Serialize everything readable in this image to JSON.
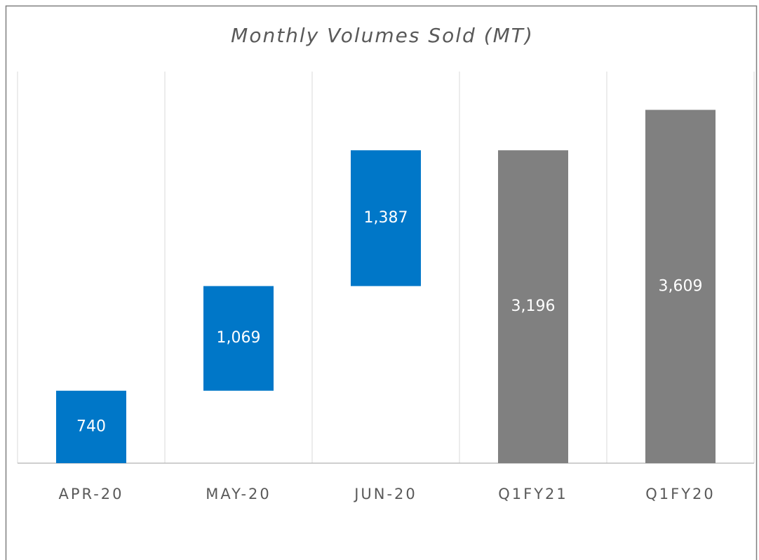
{
  "chart_data": {
    "type": "waterfall",
    "title": "Monthly Volumes Sold (MT)",
    "categories": [
      "APR-20",
      "MAY-20",
      "JUN-20",
      "Q1FY21",
      "Q1FY20"
    ],
    "values": [
      740,
      1069,
      1387,
      3196,
      3609
    ],
    "value_labels": [
      "740",
      "1,069",
      "1,387",
      "3,196",
      "3,609"
    ],
    "totals": [
      false,
      false,
      false,
      true,
      true
    ],
    "color": "#0077c8",
    "total_color": "#808080",
    "ylim": [
      0,
      4000
    ],
    "grid": true
  }
}
